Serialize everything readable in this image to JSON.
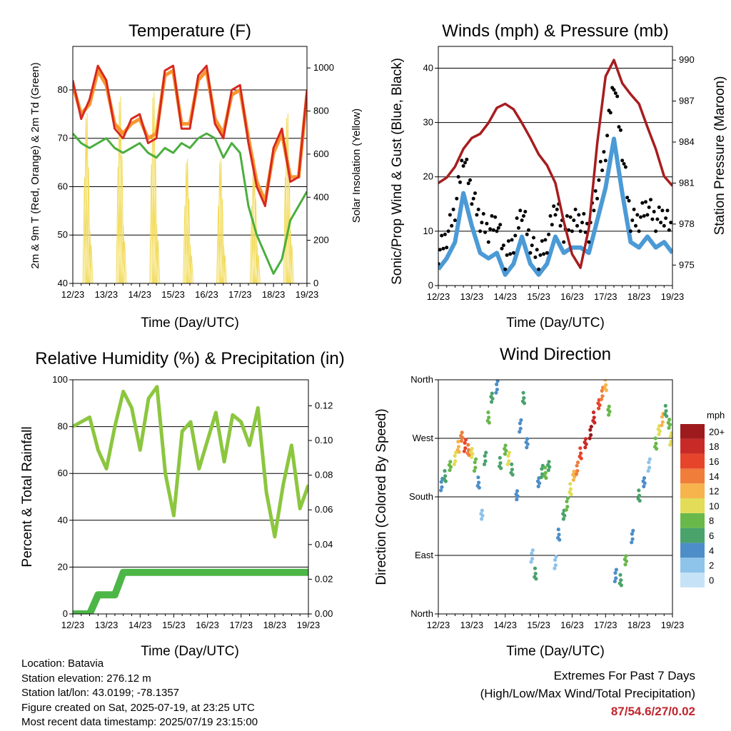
{
  "x_ticks": [
    "12/23",
    "13/23",
    "14/23",
    "15/23",
    "16/23",
    "17/23",
    "18/23",
    "19/23"
  ],
  "xlabel": "Time (Day/UTC)",
  "charts": {
    "temp": {
      "title": "Temperature (F)",
      "ylabel_left": "2m & 9m T (Red, Orange) & 2m Td (Green)",
      "ylabel_right": "Solar Insolation (Yellow)",
      "left_ticks": [
        "40",
        "50",
        "60",
        "70",
        "80"
      ],
      "right_ticks": [
        "0",
        "200",
        "400",
        "600",
        "800",
        "1000"
      ]
    },
    "wind": {
      "title": "Winds (mph) & Pressure (mb)",
      "ylabel_left": "Sonic/Prop Wind & Gust (Blue, Black)",
      "ylabel_right": "Station Pressure (Maroon)",
      "left_ticks": [
        "0",
        "10",
        "20",
        "30",
        "40"
      ],
      "right_ticks": [
        "975",
        "978",
        "981",
        "984",
        "987",
        "990"
      ]
    },
    "rh": {
      "title": "Relative Humidity (%) & Precipitation (in)",
      "ylabel_left": "Percent & Total Rainfall",
      "left_ticks": [
        "0",
        "20",
        "40",
        "60",
        "80",
        "100"
      ],
      "right_ticks": [
        "0.00",
        "0.02",
        "0.04",
        "0.06",
        "0.08",
        "0.10",
        "0.12"
      ]
    },
    "dir": {
      "title": "Wind Direction",
      "ylabel_left": "Direction (Colored By Speed)",
      "left_ticks": [
        "North",
        "East",
        "South",
        "West",
        "North"
      ],
      "legend_title": "mph",
      "legend_labels": [
        "0",
        "2",
        "4",
        "6",
        "8",
        "10",
        "12",
        "14",
        "16",
        "18",
        "20+"
      ],
      "legend_colors": [
        "#c6e2f7",
        "#8ec3ea",
        "#4d8ec8",
        "#4aa36b",
        "#69b84a",
        "#e2dc58",
        "#f7b34c",
        "#f07d3a",
        "#e6452c",
        "#c82a27",
        "#9e1a1d"
      ]
    }
  },
  "footer": {
    "location": "Location: Batavia",
    "elevation": "Station elevation: 276.12 m",
    "latlon": "Station lat/lon: 43.0199; -78.1357",
    "created": "Figure created on Sat, 2025-07-19, at 23:25 UTC",
    "recent": "Most recent data timestamp: 2025/07/19 23:15:00"
  },
  "extremes": {
    "line1": "Extremes For Past 7 Days",
    "line2": "(High/Low/Max Wind/Total Precipitation)",
    "values": "87/54.6/27/0.02"
  },
  "chart_data": [
    {
      "type": "line",
      "title": "Temperature (F)",
      "xlabel": "Time (Day/UTC)",
      "ylabel": "2m & 9m T (Red, Orange) & 2m Td (Green)",
      "y2label": "Solar Insolation (Yellow)",
      "x": [
        0,
        0.25,
        0.5,
        0.75,
        1,
        1.25,
        1.5,
        1.75,
        2,
        2.25,
        2.5,
        2.75,
        3,
        3.25,
        3.5,
        3.75,
        4,
        4.25,
        4.5,
        4.75,
        5,
        5.25,
        5.5,
        5.75,
        6,
        6.25,
        6.5,
        6.75,
        7
      ],
      "ylim": [
        40,
        89
      ],
      "y2lim": [
        0,
        1100
      ],
      "series": [
        {
          "color": "#d62a20",
          "axis": "left",
          "values": [
            82,
            74,
            78,
            85,
            82,
            72,
            70,
            74,
            75,
            69,
            70,
            84,
            85,
            72,
            72,
            83,
            85,
            73,
            70,
            80,
            81,
            69,
            60,
            56,
            68,
            72,
            61,
            62,
            80
          ]
        },
        {
          "color": "#f7962f",
          "axis": "left",
          "values": [
            81,
            75,
            77,
            84,
            81,
            73,
            71,
            73,
            74,
            70,
            71,
            83,
            84,
            73,
            73,
            82,
            84,
            74,
            71,
            79,
            80,
            70,
            61,
            57,
            67,
            71,
            62,
            62,
            79
          ]
        },
        {
          "color": "#4aae3d",
          "axis": "left",
          "values": [
            71,
            69,
            68,
            69,
            70,
            68,
            67,
            68,
            69,
            67,
            66,
            68,
            67,
            69,
            68,
            70,
            71,
            70,
            66,
            69,
            67,
            56,
            50,
            46,
            42,
            45,
            53,
            56,
            59
          ]
        },
        {
          "color": "#f2db5a",
          "axis": "right",
          "values": [
            0,
            820,
            0,
            950,
            0,
            0,
            900,
            0,
            0,
            920,
            0,
            0,
            950,
            0,
            0,
            920,
            0,
            0,
            600,
            0,
            560,
            0,
            0,
            920,
            0,
            0,
            820,
            0,
            0
          ]
        }
      ]
    },
    {
      "type": "scatter",
      "title": "Winds (mph) & Pressure (mb)",
      "xlabel": "Time (Day/UTC)",
      "ylabel": "Sonic/Prop Wind & Gust (Blue, Black)",
      "y2label": "Station Pressure (Maroon)",
      "x": [
        0,
        0.25,
        0.5,
        0.75,
        1,
        1.25,
        1.5,
        1.75,
        2,
        2.25,
        2.5,
        2.75,
        3,
        3.25,
        3.5,
        3.75,
        4,
        4.25,
        4.5,
        4.75,
        5,
        5.25,
        5.5,
        5.75,
        6,
        6.25,
        6.5,
        6.75,
        7
      ],
      "ylim": [
        0,
        44
      ],
      "y2lim": [
        973.5,
        991
      ],
      "series": [
        {
          "name": "",
          "color": "#000000",
          "axis": "left",
          "values": [
            6,
            9,
            14,
            24,
            17,
            12,
            10,
            12,
            5,
            8,
            14,
            8,
            5,
            8,
            15,
            10,
            12,
            12,
            10,
            18,
            25,
            38,
            25,
            12,
            12,
            15,
            12,
            13,
            10
          ]
        },
        {
          "name": "",
          "color": "#4b9ad6",
          "axis": "left",
          "values": [
            3,
            5,
            8,
            17,
            11,
            6,
            5,
            6,
            2,
            4,
            9,
            4,
            2,
            4,
            9,
            6,
            7,
            7,
            6,
            12,
            18,
            27,
            17,
            8,
            7,
            9,
            7,
            8,
            6
          ]
        },
        {
          "name": "",
          "color": "#a71d1f",
          "axis": "right",
          "values": [
            981,
            981.4,
            982.2,
            983.5,
            984.3,
            984.6,
            985.4,
            986.5,
            986.8,
            986.4,
            985.4,
            984.3,
            983.1,
            982.3,
            981,
            978.2,
            975.8,
            974.8,
            977.7,
            983.9,
            988.8,
            990,
            988.3,
            987.5,
            986.8,
            985.1,
            983.5,
            981.5,
            980.8
          ]
        }
      ]
    },
    {
      "type": "line",
      "title": "Relative Humidity (%) & Precipitation (in)",
      "xlabel": "Time (Day/UTC)",
      "ylabel": "Percent & Total Rainfall",
      "x": [
        0,
        0.25,
        0.5,
        0.75,
        1,
        1.25,
        1.5,
        1.75,
        2,
        2.25,
        2.5,
        2.75,
        3,
        3.25,
        3.5,
        3.75,
        4,
        4.25,
        4.5,
        4.75,
        5,
        5.25,
        5.5,
        5.75,
        6,
        6.25,
        6.5,
        6.75,
        7
      ],
      "ylim": [
        0,
        100
      ],
      "y2lim": [
        0,
        0.135
      ],
      "series": [
        {
          "name": "",
          "color": "#8cc63f",
          "axis": "left",
          "values": [
            80,
            82,
            84,
            70,
            62,
            80,
            95,
            88,
            70,
            92,
            97,
            60,
            42,
            78,
            82,
            62,
            74,
            86,
            65,
            85,
            82,
            72,
            88,
            52,
            33,
            55,
            72,
            45,
            55
          ]
        },
        {
          "name": "",
          "color": "#4cb647",
          "axis": "right",
          "values": [
            0,
            0,
            0,
            0.011,
            0.011,
            0.011,
            0.024,
            0.024,
            0.024,
            0.024,
            0.024,
            0.024,
            0.024,
            0.024,
            0.024,
            0.024,
            0.024,
            0.024,
            0.024,
            0.024,
            0.024,
            0.024,
            0.024,
            0.024,
            0.024,
            0.024,
            0.024,
            0.024,
            0.024
          ]
        }
      ]
    },
    {
      "type": "scatter",
      "title": "Wind Direction",
      "xlabel": "Time (Day/UTC)",
      "ylabel": "Direction (Colored By Speed)",
      "ylim": [
        0,
        360
      ],
      "points": [
        [
          0.1,
          200,
          4
        ],
        [
          0.2,
          210,
          6
        ],
        [
          0.35,
          225,
          8
        ],
        [
          0.5,
          240,
          10
        ],
        [
          0.6,
          255,
          12
        ],
        [
          0.7,
          270,
          14
        ],
        [
          0.8,
          260,
          16
        ],
        [
          0.9,
          250,
          14
        ],
        [
          1.0,
          245,
          10
        ],
        [
          1.1,
          230,
          8
        ],
        [
          1.2,
          200,
          4
        ],
        [
          1.3,
          150,
          2
        ],
        [
          1.4,
          240,
          6
        ],
        [
          1.5,
          300,
          8
        ],
        [
          1.6,
          330,
          6
        ],
        [
          1.75,
          350,
          4
        ],
        [
          1.85,
          230,
          6
        ],
        [
          2.0,
          250,
          8
        ],
        [
          2.1,
          240,
          10
        ],
        [
          2.2,
          220,
          6
        ],
        [
          2.35,
          180,
          4
        ],
        [
          2.45,
          290,
          4
        ],
        [
          2.55,
          330,
          6
        ],
        [
          2.65,
          260,
          4
        ],
        [
          2.8,
          90,
          2
        ],
        [
          2.9,
          60,
          6
        ],
        [
          3.0,
          200,
          4
        ],
        [
          3.1,
          220,
          6
        ],
        [
          3.2,
          215,
          8
        ],
        [
          3.3,
          225,
          6
        ],
        [
          3.5,
          80,
          2
        ],
        [
          3.6,
          120,
          4
        ],
        [
          3.75,
          150,
          6
        ],
        [
          3.85,
          170,
          8
        ],
        [
          3.95,
          190,
          10
        ],
        [
          4.05,
          210,
          12
        ],
        [
          4.15,
          225,
          14
        ],
        [
          4.25,
          245,
          16
        ],
        [
          4.4,
          260,
          18
        ],
        [
          4.55,
          280,
          20
        ],
        [
          4.65,
          300,
          18
        ],
        [
          4.8,
          320,
          16
        ],
        [
          4.9,
          340,
          14
        ],
        [
          5.0,
          350,
          12
        ],
        [
          5.1,
          310,
          8
        ],
        [
          5.3,
          60,
          4
        ],
        [
          5.45,
          50,
          6
        ],
        [
          5.6,
          80,
          8
        ],
        [
          5.8,
          120,
          4
        ],
        [
          6.0,
          180,
          6
        ],
        [
          6.15,
          200,
          4
        ],
        [
          6.3,
          230,
          2
        ],
        [
          6.5,
          260,
          8
        ],
        [
          6.6,
          280,
          10
        ],
        [
          6.7,
          300,
          12
        ],
        [
          6.8,
          310,
          6
        ],
        [
          6.9,
          290,
          8
        ],
        [
          6.95,
          270,
          10
        ]
      ]
    }
  ]
}
